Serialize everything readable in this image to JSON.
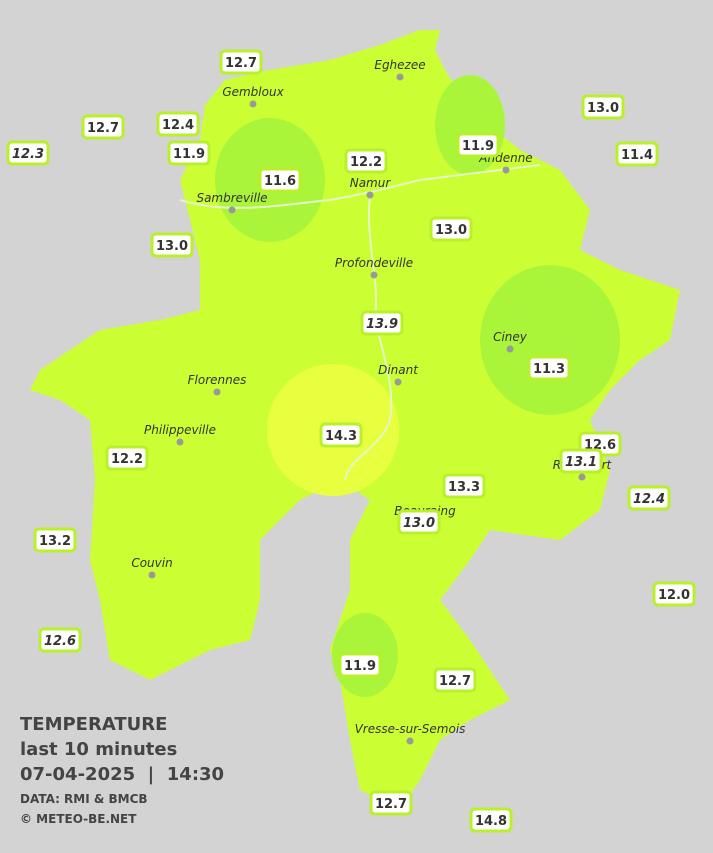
{
  "map": {
    "stations": [
      "12.7",
      "12.7",
      "12.4",
      "12.3",
      "11.9",
      "11.6",
      "12.2",
      "11.9",
      "13.0",
      "11.4",
      "13.0",
      "13.0",
      "13.9",
      "11.3",
      "14.3",
      "12.6",
      "13.1",
      "12.2",
      "13.3",
      "12.4",
      "13.0",
      "13.2",
      "12.0",
      "12.6",
      "11.9",
      "12.7",
      "12.7",
      "14.8"
    ],
    "cities": [
      "Eghezee",
      "Gembloux",
      "Andenne",
      "Namur",
      "Sambreville",
      "Profondeville",
      "Ciney",
      "Dinant",
      "Florennes",
      "Philippeville",
      "Rochefort",
      "Beauraing",
      "Couvin",
      "Vresse-sur-Semois"
    ],
    "legend": {
      "title": "TEMPERATURE",
      "subtitle": "last 10 minutes",
      "datetime": "07-04-2025  |  14:30",
      "source": "DATA: RMI & BMCB",
      "copyright": "© METEO-BE.NET"
    }
  }
}
